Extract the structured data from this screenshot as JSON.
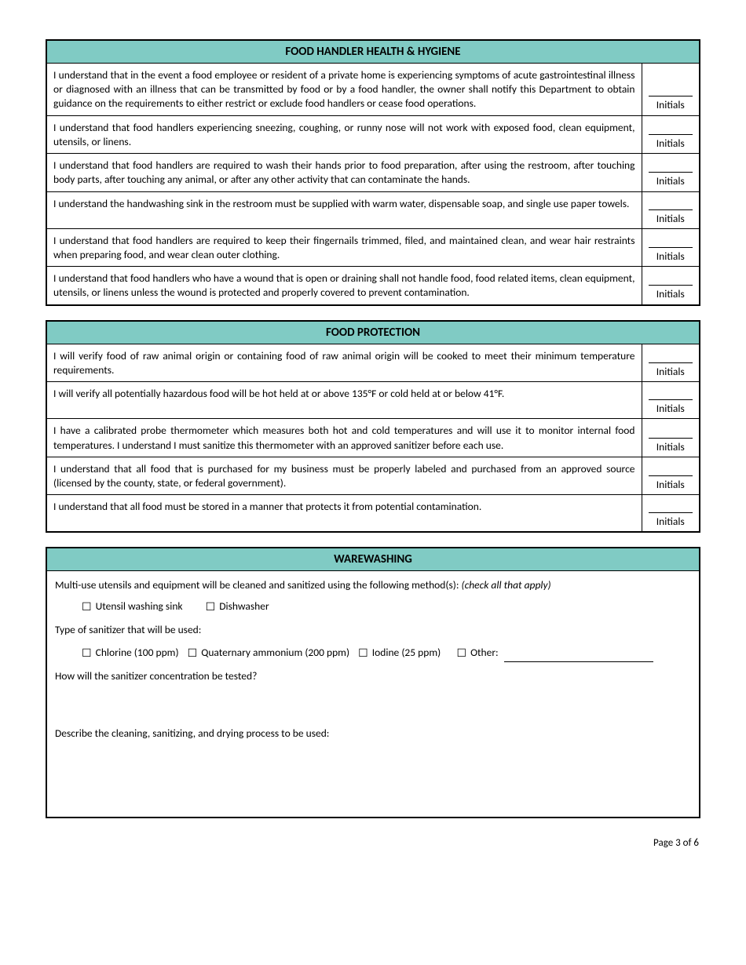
{
  "colors": {
    "header_bg": "#80cbc4",
    "border": "#000000",
    "text": "#000000",
    "page_bg": "#ffffff"
  },
  "initials_label": "Initials",
  "sections": {
    "health": {
      "title": "FOOD HANDLER HEALTH & HYGIENE",
      "rows": [
        "I understand that in the event a food employee or resident of a private home is experiencing symptoms of acute gastrointestinal illness or diagnosed with an illness that can be transmitted by food or by a food handler, the owner shall notify this Department to obtain guidance on the requirements to either restrict or exclude food handlers or cease food operations.",
        "I understand that food handlers experiencing sneezing, coughing, or runny nose will not work with exposed food, clean equipment,  utensils, or linens.",
        "I understand that food handlers are required to wash their hands prior to food preparation, after using the restroom, after touching body parts, after touching any animal, or after any other activity that can contaminate the hands.",
        "I understand the handwashing sink in the restroom must be supplied with warm water, dispensable soap, and single use paper towels.",
        "I understand that food handlers are required to keep their fingernails trimmed, filed, and maintained clean, and wear hair restraints when preparing food, and wear clean outer clothing.",
        "I understand that food handlers who have a wound that is open or draining shall not handle food, food related items, clean equipment, utensils, or linens unless the wound is protected and properly covered to prevent contamination."
      ]
    },
    "protection": {
      "title": "FOOD PROTECTION",
      "rows": [
        "I will verify food of raw animal origin or containing food of raw animal origin will be cooked to meet their minimum temperature requirements.",
        "I will verify all potentially hazardous food will be hot held at or above 135°F or cold held at or below 41°F.",
        "I have a calibrated probe thermometer which measures both hot and cold temperatures and will use it to monitor internal food temperatures. I understand I must sanitize this thermometer with an approved sanitizer before each use.",
        "I understand that all food that is purchased for my business must be properly labeled and purchased from an approved source (licensed by the county, state, or federal government).",
        "I understand that all food must be stored in a manner that protects it from potential contamination."
      ]
    },
    "warewashing": {
      "title": "WAREWASHING",
      "intro_prefix": "Multi-use utensils and equipment will be cleaned and sanitized using the following method(s): ",
      "intro_italic": "(check all that apply)",
      "methods": [
        "Utensil washing sink",
        "Dishwasher"
      ],
      "sanitizer_label": "Type of sanitizer that will be used:",
      "sanitizers": [
        "Chlorine (100 ppm)",
        "Quaternary ammonium (200 ppm)",
        "Iodine (25 ppm)",
        "Other:"
      ],
      "q1": "How will the sanitizer concentration be tested?",
      "q2": "Describe the cleaning, sanitizing, and drying process to be used:"
    }
  },
  "footer": "Page 3 of 6"
}
